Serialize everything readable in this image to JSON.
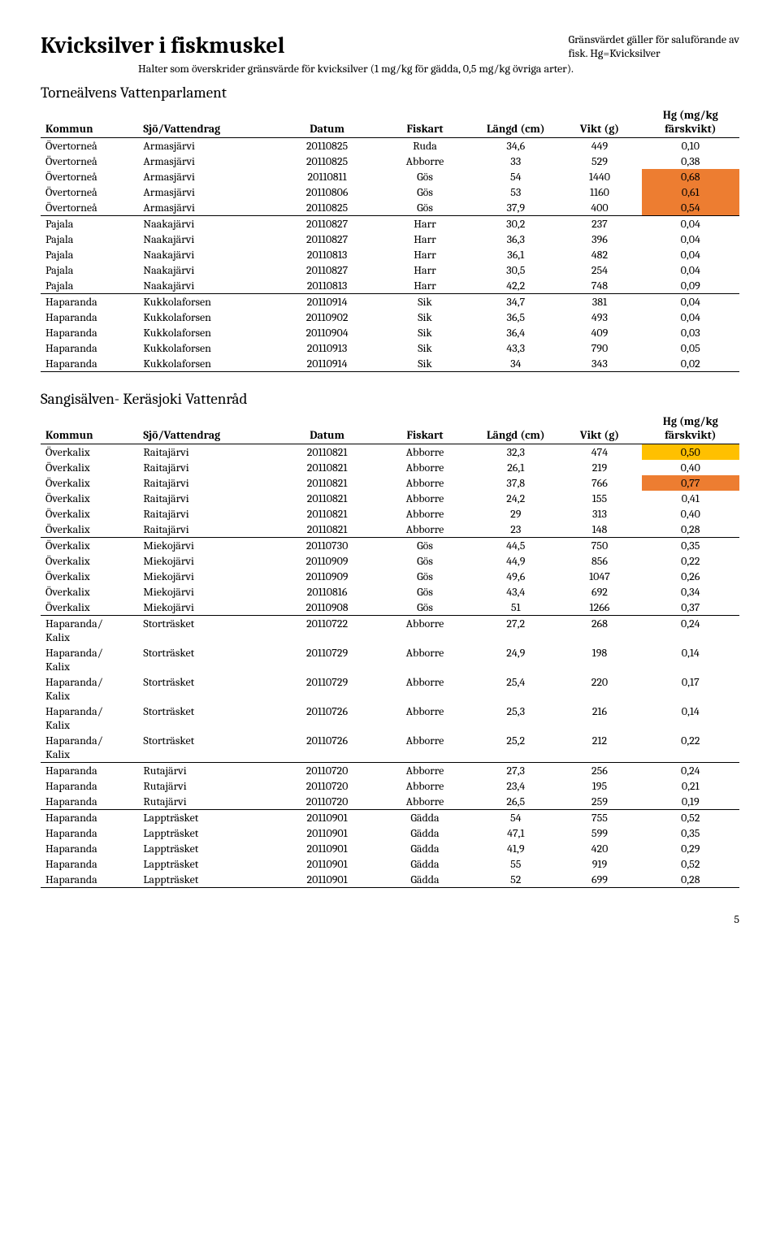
{
  "header": {
    "title": "Kvicksilver i fiskmuskel",
    "top_note_line1": "Gränsvärdet gäller för saluförande av",
    "top_note_line2": "fisk. Hg=Kvicksilver",
    "sub_note": "Halter som överskrider gränsvärde för kvicksilver (1 mg/kg för gädda, 0,5 mg/kg övriga arter)."
  },
  "columns": {
    "kommun": "Kommun",
    "sjo": "Sjö/Vattendrag",
    "datum": "Datum",
    "fiskart": "Fiskart",
    "langd": "Längd (cm)",
    "vikt": "Vikt (g)",
    "hg": "Hg (mg/kg färskvikt)"
  },
  "section1": {
    "heading": "Torneälvens Vattenparlament",
    "groups": [
      {
        "rows": [
          {
            "kommun": "Övertorneå",
            "sjo": "Armasjärvi",
            "datum": "20110825",
            "fiskart": "Ruda",
            "langd": "34,6",
            "vikt": "449",
            "hg": "0,10",
            "hl": ""
          },
          {
            "kommun": "Övertorneå",
            "sjo": "Armasjärvi",
            "datum": "20110825",
            "fiskart": "Abborre",
            "langd": "33",
            "vikt": "529",
            "hg": "0,38",
            "hl": ""
          },
          {
            "kommun": "Övertorneå",
            "sjo": "Armasjärvi",
            "datum": "20110811",
            "fiskart": "Gös",
            "langd": "54",
            "vikt": "1440",
            "hg": "0,68",
            "hl": "hl-orange"
          },
          {
            "kommun": "Övertorneå",
            "sjo": "Armasjärvi",
            "datum": "20110806",
            "fiskart": "Gös",
            "langd": "53",
            "vikt": "1160",
            "hg": "0,61",
            "hl": "hl-orange"
          },
          {
            "kommun": "Övertorneå",
            "sjo": "Armasjärvi",
            "datum": "20110825",
            "fiskart": "Gös",
            "langd": "37,9",
            "vikt": "400",
            "hg": "0,54",
            "hl": "hl-orange"
          }
        ]
      },
      {
        "rows": [
          {
            "kommun": "Pajala",
            "sjo": "Naakajärvi",
            "datum": "20110827",
            "fiskart": "Harr",
            "langd": "30,2",
            "vikt": "237",
            "hg": "0,04",
            "hl": ""
          },
          {
            "kommun": "Pajala",
            "sjo": "Naakajärvi",
            "datum": "20110827",
            "fiskart": "Harr",
            "langd": "36,3",
            "vikt": "396",
            "hg": "0,04",
            "hl": ""
          },
          {
            "kommun": "Pajala",
            "sjo": "Naakajärvi",
            "datum": "20110813",
            "fiskart": "Harr",
            "langd": "36,1",
            "vikt": "482",
            "hg": "0,04",
            "hl": ""
          },
          {
            "kommun": "Pajala",
            "sjo": "Naakajärvi",
            "datum": "20110827",
            "fiskart": "Harr",
            "langd": "30,5",
            "vikt": "254",
            "hg": "0,04",
            "hl": ""
          },
          {
            "kommun": "Pajala",
            "sjo": "Naakajärvi",
            "datum": "20110813",
            "fiskart": "Harr",
            "langd": "42,2",
            "vikt": "748",
            "hg": "0,09",
            "hl": ""
          }
        ]
      },
      {
        "rows": [
          {
            "kommun": "Haparanda",
            "sjo": "Kukkolaforsen",
            "datum": "20110914",
            "fiskart": "Sik",
            "langd": "34,7",
            "vikt": "381",
            "hg": "0,04",
            "hl": ""
          },
          {
            "kommun": "Haparanda",
            "sjo": "Kukkolaforsen",
            "datum": "20110902",
            "fiskart": "Sik",
            "langd": "36,5",
            "vikt": "493",
            "hg": "0,04",
            "hl": ""
          },
          {
            "kommun": "Haparanda",
            "sjo": "Kukkolaforsen",
            "datum": "20110904",
            "fiskart": "Sik",
            "langd": "36,4",
            "vikt": "409",
            "hg": "0,03",
            "hl": ""
          },
          {
            "kommun": "Haparanda",
            "sjo": "Kukkolaforsen",
            "datum": "20110913",
            "fiskart": "Sik",
            "langd": "43,3",
            "vikt": "790",
            "hg": "0,05",
            "hl": ""
          },
          {
            "kommun": "Haparanda",
            "sjo": "Kukkolaforsen",
            "datum": "20110914",
            "fiskart": "Sik",
            "langd": "34",
            "vikt": "343",
            "hg": "0,02",
            "hl": ""
          }
        ]
      }
    ]
  },
  "section2": {
    "heading": "Sangisälven- Keräsjoki Vattenråd",
    "groups": [
      {
        "rows": [
          {
            "kommun": "Överkalix",
            "sjo": "Raitajärvi",
            "datum": "20110821",
            "fiskart": "Abborre",
            "langd": "32,3",
            "vikt": "474",
            "hg": "0,50",
            "hl": "hl-yellow"
          },
          {
            "kommun": "Överkalix",
            "sjo": "Raitajärvi",
            "datum": "20110821",
            "fiskart": "Abborre",
            "langd": "26,1",
            "vikt": "219",
            "hg": "0,40",
            "hl": ""
          },
          {
            "kommun": "Överkalix",
            "sjo": "Raitajärvi",
            "datum": "20110821",
            "fiskart": "Abborre",
            "langd": "37,8",
            "vikt": "766",
            "hg": "0,77",
            "hl": "hl-orange"
          },
          {
            "kommun": "Överkalix",
            "sjo": "Raitajärvi",
            "datum": "20110821",
            "fiskart": "Abborre",
            "langd": "24,2",
            "vikt": "155",
            "hg": "0,41",
            "hl": ""
          },
          {
            "kommun": "Överkalix",
            "sjo": "Raitajärvi",
            "datum": "20110821",
            "fiskart": "Abborre",
            "langd": "29",
            "vikt": "313",
            "hg": "0,40",
            "hl": ""
          },
          {
            "kommun": "Överkalix",
            "sjo": "Raitajärvi",
            "datum": "20110821",
            "fiskart": "Abborre",
            "langd": "23",
            "vikt": "148",
            "hg": "0,28",
            "hl": ""
          }
        ]
      },
      {
        "rows": [
          {
            "kommun": "Överkalix",
            "sjo": "Miekojärvi",
            "datum": "20110730",
            "fiskart": "Gös",
            "langd": "44,5",
            "vikt": "750",
            "hg": "0,35",
            "hl": ""
          },
          {
            "kommun": "Överkalix",
            "sjo": "Miekojärvi",
            "datum": "20110909",
            "fiskart": "Gös",
            "langd": "44,9",
            "vikt": "856",
            "hg": "0,22",
            "hl": ""
          },
          {
            "kommun": "Överkalix",
            "sjo": "Miekojärvi",
            "datum": "20110909",
            "fiskart": "Gös",
            "langd": "49,6",
            "vikt": "1047",
            "hg": "0,26",
            "hl": ""
          },
          {
            "kommun": "Överkalix",
            "sjo": "Miekojärvi",
            "datum": "20110816",
            "fiskart": "Gös",
            "langd": "43,4",
            "vikt": "692",
            "hg": "0,34",
            "hl": ""
          },
          {
            "kommun": "Överkalix",
            "sjo": "Miekojärvi",
            "datum": "20110908",
            "fiskart": "Gös",
            "langd": "51",
            "vikt": "1266",
            "hg": "0,37",
            "hl": ""
          }
        ]
      },
      {
        "rows": [
          {
            "kommun": "Haparanda/\nKalix",
            "sjo": "Storträsket",
            "datum": "20110722",
            "fiskart": "Abborre",
            "langd": "27,2",
            "vikt": "268",
            "hg": "0,24",
            "hl": ""
          },
          {
            "kommun": "Haparanda/\nKalix",
            "sjo": "Storträsket",
            "datum": "20110729",
            "fiskart": "Abborre",
            "langd": "24,9",
            "vikt": "198",
            "hg": "0,14",
            "hl": ""
          },
          {
            "kommun": "Haparanda/\nKalix",
            "sjo": "Storträsket",
            "datum": "20110729",
            "fiskart": "Abborre",
            "langd": "25,4",
            "vikt": "220",
            "hg": "0,17",
            "hl": ""
          },
          {
            "kommun": "Haparanda/\nKalix",
            "sjo": "Storträsket",
            "datum": "20110726",
            "fiskart": "Abborre",
            "langd": "25,3",
            "vikt": "216",
            "hg": "0,14",
            "hl": ""
          },
          {
            "kommun": "Haparanda/\nKalix",
            "sjo": "Storträsket",
            "datum": "20110726",
            "fiskart": "Abborre",
            "langd": "25,2",
            "vikt": "212",
            "hg": "0,22",
            "hl": ""
          }
        ]
      },
      {
        "rows": [
          {
            "kommun": "Haparanda",
            "sjo": "Rutajärvi",
            "datum": "20110720",
            "fiskart": "Abborre",
            "langd": "27,3",
            "vikt": "256",
            "hg": "0,24",
            "hl": ""
          },
          {
            "kommun": "Haparanda",
            "sjo": "Rutajärvi",
            "datum": "20110720",
            "fiskart": "Abborre",
            "langd": "23,4",
            "vikt": "195",
            "hg": "0,21",
            "hl": ""
          },
          {
            "kommun": "Haparanda",
            "sjo": "Rutajärvi",
            "datum": "20110720",
            "fiskart": "Abborre",
            "langd": "26,5",
            "vikt": "259",
            "hg": "0,19",
            "hl": ""
          }
        ]
      },
      {
        "rows": [
          {
            "kommun": "Haparanda",
            "sjo": "Lappträsket",
            "datum": "20110901",
            "fiskart": "Gädda",
            "langd": "54",
            "vikt": "755",
            "hg": "0,52",
            "hl": ""
          },
          {
            "kommun": "Haparanda",
            "sjo": "Lappträsket",
            "datum": "20110901",
            "fiskart": "Gädda",
            "langd": "47,1",
            "vikt": "599",
            "hg": "0,35",
            "hl": ""
          },
          {
            "kommun": "Haparanda",
            "sjo": "Lappträsket",
            "datum": "20110901",
            "fiskart": "Gädda",
            "langd": "41,9",
            "vikt": "420",
            "hg": "0,29",
            "hl": ""
          },
          {
            "kommun": "Haparanda",
            "sjo": "Lappträsket",
            "datum": "20110901",
            "fiskart": "Gädda",
            "langd": "55",
            "vikt": "919",
            "hg": "0,52",
            "hl": ""
          },
          {
            "kommun": "Haparanda",
            "sjo": "Lappträsket",
            "datum": "20110901",
            "fiskart": "Gädda",
            "langd": "52",
            "vikt": "699",
            "hg": "0,28",
            "hl": ""
          }
        ]
      }
    ]
  },
  "page_number": "5"
}
